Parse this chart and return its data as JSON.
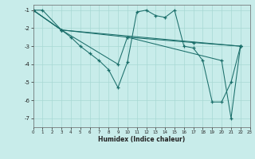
{
  "xlabel": "Humidex (Indice chaleur)",
  "bg_color": "#c8ecea",
  "line_color": "#1a6e6a",
  "grid_color": "#a8d8d4",
  "xlim": [
    0,
    23
  ],
  "ylim": [
    -7.5,
    -0.7
  ],
  "yticks": [
    -7,
    -6,
    -5,
    -4,
    -3,
    -2,
    -1
  ],
  "xticks": [
    0,
    1,
    2,
    3,
    4,
    5,
    6,
    7,
    8,
    9,
    10,
    11,
    12,
    13,
    14,
    15,
    16,
    17,
    18,
    19,
    20,
    21,
    22,
    23
  ],
  "series": [
    {
      "x": [
        0,
        1,
        3,
        4,
        5,
        6,
        7,
        8,
        9,
        10,
        11,
        12,
        13,
        14,
        15,
        16,
        17,
        18,
        19,
        20,
        21,
        22
      ],
      "y": [
        -1.0,
        -1.0,
        -2.1,
        -2.5,
        -3.0,
        -3.4,
        -3.8,
        -4.3,
        -5.3,
        -3.9,
        -1.1,
        -1.0,
        -1.3,
        -1.4,
        -1.0,
        -3.0,
        -3.1,
        -3.8,
        -6.1,
        -6.1,
        -5.0,
        -3.0
      ]
    },
    {
      "x": [
        0,
        3,
        22
      ],
      "y": [
        -1.0,
        -2.1,
        -3.0
      ]
    },
    {
      "x": [
        0,
        3,
        9,
        10,
        17,
        22
      ],
      "y": [
        -1.0,
        -2.1,
        -4.0,
        -2.5,
        -2.8,
        -3.0
      ]
    },
    {
      "x": [
        0,
        3,
        10,
        20,
        21,
        22
      ],
      "y": [
        -1.0,
        -2.1,
        -2.5,
        -3.8,
        -7.0,
        -3.0
      ]
    }
  ]
}
